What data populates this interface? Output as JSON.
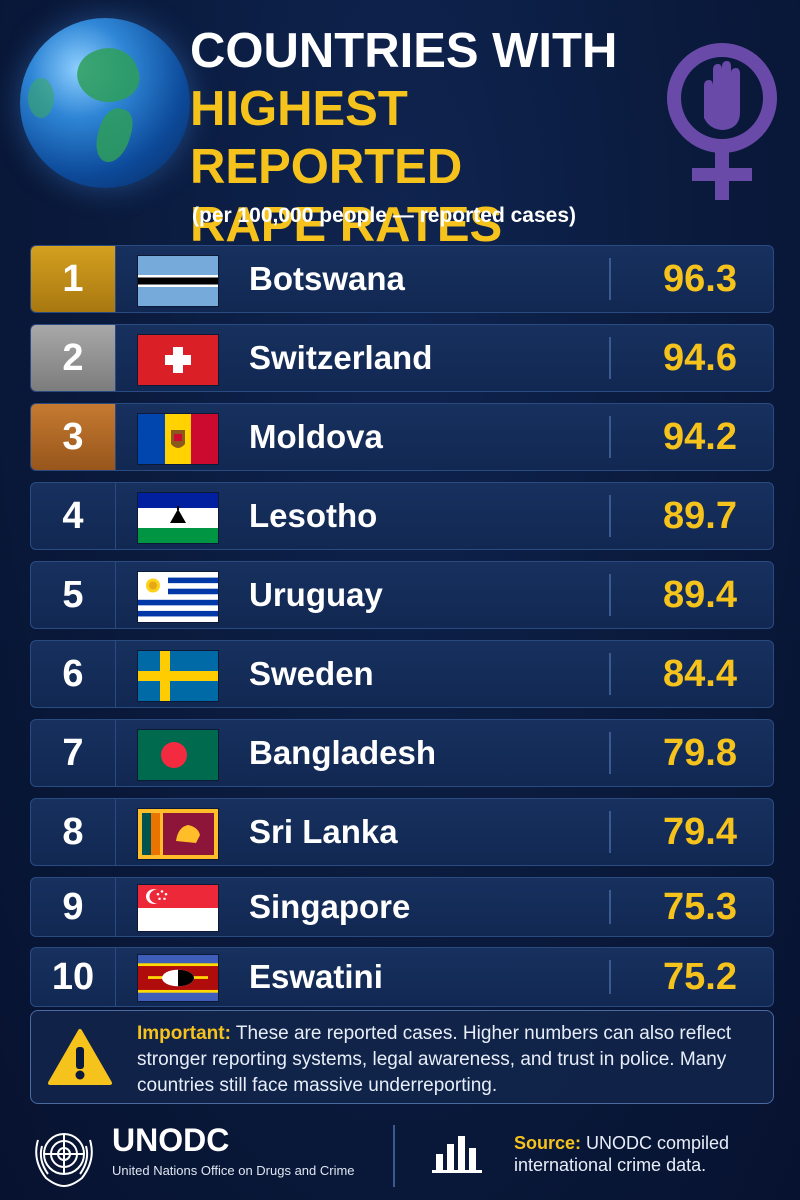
{
  "header": {
    "title_line1": "COUNTRIES WITH",
    "title_line2": "HIGHEST REPORTED",
    "title_line3": "RAPE RATES",
    "subtitle": "(per 100,000 people — reported cases)"
  },
  "chart_data": {
    "type": "table",
    "title": "COUNTRIES WITH HIGHEST REPORTED RAPE RATES",
    "subtitle": "(per 100,000 people — reported cases)",
    "rows": [
      {
        "rank": "1",
        "country": "Botswana",
        "value": "96.3",
        "flag": "botswana-flag"
      },
      {
        "rank": "2",
        "country": "Switzerland",
        "value": "94.6",
        "flag": "switzerland-flag"
      },
      {
        "rank": "3",
        "country": "Moldova",
        "value": "94.2",
        "flag": "moldova-flag"
      },
      {
        "rank": "4",
        "country": "Lesotho",
        "value": "89.7",
        "flag": "lesotho-flag"
      },
      {
        "rank": "5",
        "country": "Uruguay",
        "value": "89.4",
        "flag": "uruguay-flag"
      },
      {
        "rank": "6",
        "country": "Sweden",
        "value": "84.4",
        "flag": "sweden-flag"
      },
      {
        "rank": "7",
        "country": "Bangladesh",
        "value": "79.8",
        "flag": "bangladesh-flag"
      },
      {
        "rank": "8",
        "country": "Sri Lanka",
        "value": "79.4",
        "flag": "sri-lanka-flag"
      },
      {
        "rank": "9",
        "country": "Singapore",
        "value": "75.3",
        "flag": "singapore-flag"
      },
      {
        "rank": "10",
        "country": "Eswatini",
        "value": "75.2",
        "flag": "eswatini-flag"
      }
    ]
  },
  "note": {
    "label": "Important:",
    "text": " These are reported cases. Higher numbers can also reflect stronger reporting systems, legal awareness, and trust in police. Many countries still face massive underreporting."
  },
  "footer": {
    "org": "UNODC",
    "org_full": "United Nations Office on Drugs and Crime",
    "source_label": "Source:",
    "source_text": " UNODC compiled international crime data."
  },
  "colors": {
    "accent": "#f6c21c",
    "background": "#0a1a3c",
    "row": "#132b58",
    "purple": "#6a4aa8"
  },
  "icons": [
    "globe-icon",
    "female-hand-icon",
    "warning-icon",
    "un-emblem-icon",
    "bar-chart-icon"
  ]
}
